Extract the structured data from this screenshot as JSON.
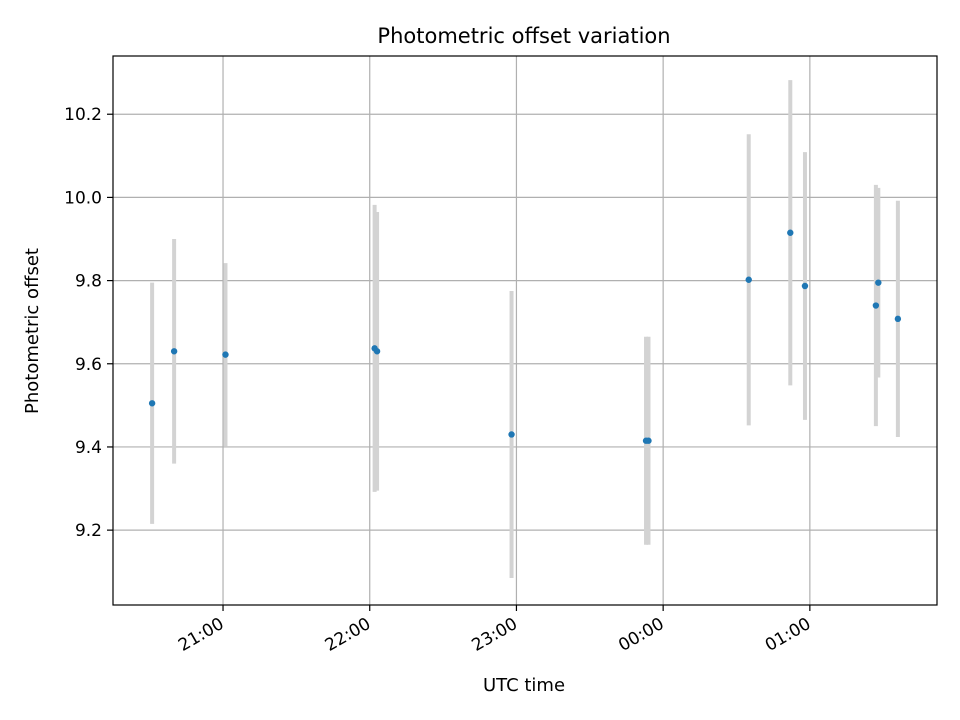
{
  "chart_data": {
    "type": "scatter",
    "title": "Photometric offset variation",
    "xlabel": "UTC time",
    "ylabel": "Photometric offset",
    "x_ticks": [
      "21:00",
      "22:00",
      "23:00",
      "00:00",
      "01:00"
    ],
    "x_tick_values": [
      "21:00",
      "22:00",
      "23:00",
      "00:00",
      "01:00"
    ],
    "xlim": [
      "20:15",
      "01:52"
    ],
    "y_ticks": [
      9.2,
      9.4,
      9.6,
      9.8,
      10.0,
      10.2
    ],
    "ylim": [
      9.02,
      10.34
    ],
    "grid": true,
    "colors": {
      "marker": "#1f77b4",
      "errorbar": "#d3d3d3",
      "grid": "#b0b0b0"
    },
    "points": [
      {
        "x": "20:31",
        "y": 9.505,
        "err": 0.29
      },
      {
        "x": "20:40",
        "y": 9.63,
        "err": 0.27
      },
      {
        "x": "21:01",
        "y": 9.622,
        "err": 0.22
      },
      {
        "x": "22:02",
        "y": 9.637,
        "err": 0.345
      },
      {
        "x": "22:03",
        "y": 9.63,
        "err": 0.335
      },
      {
        "x": "22:58",
        "y": 9.43,
        "err": 0.345
      },
      {
        "x": "23:53",
        "y": 9.415,
        "err": 0.25
      },
      {
        "x": "23:54",
        "y": 9.415,
        "err": 0.25
      },
      {
        "x": "00:35",
        "y": 9.802,
        "err": 0.35
      },
      {
        "x": "00:52",
        "y": 9.915,
        "err": 0.367
      },
      {
        "x": "00:58",
        "y": 9.787,
        "err": 0.322
      },
      {
        "x": "01:27",
        "y": 9.74,
        "err": 0.29
      },
      {
        "x": "01:28",
        "y": 9.795,
        "err": 0.228
      },
      {
        "x": "01:36",
        "y": 9.708,
        "err": 0.284
      }
    ]
  }
}
